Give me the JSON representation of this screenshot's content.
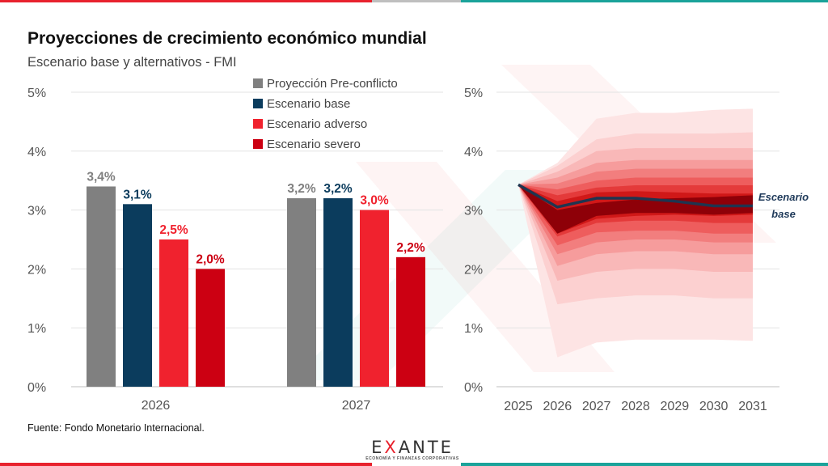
{
  "title": "Proyecciones de crecimiento económico mundial",
  "subtitle": "Escenario base y alternativos - FMI",
  "source": "Fuente: Fondo Monetario Internacional.",
  "logo": {
    "wordmark_pre": "E",
    "wordmark_x": "X",
    "wordmark_post": "ANTE",
    "tagline": "ECONOMÍA Y FINANZAS CORPORATIVAS"
  },
  "colors": {
    "pre_conflict": "#808080",
    "base": "#0b3c5d",
    "adverse": "#f0222e",
    "severe": "#cc0012",
    "brand_red": "#e8222d",
    "brand_teal": "#1aa39a"
  },
  "chart_data": [
    {
      "type": "bar",
      "categories": [
        "2026",
        "2027"
      ],
      "series": [
        {
          "name": "Proyección Pre-conflicto",
          "values": [
            3.4,
            3.2
          ],
          "labels": [
            "3,4%",
            "3,2%"
          ],
          "color": "#808080"
        },
        {
          "name": "Escenario base",
          "values": [
            3.1,
            3.2
          ],
          "labels": [
            "3,1%",
            "3,2%"
          ],
          "color": "#0b3c5d"
        },
        {
          "name": "Escenario adverso",
          "values": [
            2.5,
            3.0
          ],
          "labels": [
            "2,5%",
            "3,0%"
          ],
          "color": "#f0222e"
        },
        {
          "name": "Escenario severo",
          "values": [
            2.0,
            2.2
          ],
          "labels": [
            "2,0%",
            "2,2%"
          ],
          "color": "#cc0012"
        }
      ],
      "ylim": [
        0,
        5
      ],
      "yticks": [
        "0%",
        "1%",
        "2%",
        "3%",
        "4%",
        "5%"
      ],
      "grid": true,
      "legend": "top-right"
    },
    {
      "type": "area",
      "x": [
        "2025",
        "2026",
        "2027",
        "2028",
        "2029",
        "2030",
        "2031"
      ],
      "base_line": {
        "name": "Escenario base",
        "values": [
          3.43,
          3.05,
          3.2,
          3.2,
          3.15,
          3.07,
          3.07
        ]
      },
      "bands": [
        {
          "lower": [
            3.43,
            0.5,
            0.75,
            0.8,
            0.8,
            0.8,
            0.78
          ],
          "upper": [
            3.43,
            3.8,
            4.55,
            4.65,
            4.65,
            4.7,
            4.72
          ]
        },
        {
          "lower": [
            3.43,
            1.4,
            1.5,
            1.55,
            1.55,
            1.5,
            1.5
          ],
          "upper": [
            3.43,
            3.75,
            4.2,
            4.3,
            4.3,
            4.3,
            4.32
          ]
        },
        {
          "lower": [
            3.43,
            1.8,
            1.95,
            2.0,
            2.0,
            1.95,
            1.95
          ],
          "upper": [
            3.43,
            3.65,
            4.0,
            4.05,
            4.05,
            4.05,
            4.05
          ]
        },
        {
          "lower": [
            3.43,
            2.05,
            2.25,
            2.3,
            2.3,
            2.25,
            2.25
          ],
          "upper": [
            3.43,
            3.55,
            3.8,
            3.85,
            3.85,
            3.85,
            3.85
          ]
        },
        {
          "lower": [
            3.43,
            2.25,
            2.45,
            2.5,
            2.5,
            2.45,
            2.45
          ],
          "upper": [
            3.43,
            3.45,
            3.65,
            3.7,
            3.7,
            3.7,
            3.7
          ]
        },
        {
          "lower": [
            3.43,
            2.4,
            2.62,
            2.65,
            2.65,
            2.6,
            2.6
          ],
          "upper": [
            3.43,
            3.35,
            3.5,
            3.55,
            3.55,
            3.55,
            3.55
          ]
        },
        {
          "lower": [
            3.43,
            2.55,
            2.78,
            2.82,
            2.82,
            2.78,
            2.78
          ],
          "upper": [
            3.43,
            3.25,
            3.38,
            3.42,
            3.42,
            3.42,
            3.42
          ]
        },
        {
          "lower": [
            3.43,
            2.6,
            2.85,
            2.9,
            2.92,
            2.9,
            2.92
          ],
          "upper": [
            3.43,
            3.15,
            3.3,
            3.32,
            3.3,
            3.28,
            3.28
          ]
        },
        {
          "lower": [
            3.43,
            2.6,
            2.9,
            2.95,
            2.95,
            2.92,
            2.95
          ],
          "upper": [
            3.43,
            3.0,
            3.12,
            3.18,
            3.2,
            3.22,
            3.25
          ]
        }
      ],
      "band_colors": [
        "#fde4e4",
        "#fcd0d0",
        "#f9b8b8",
        "#f69c9c",
        "#f27e7e",
        "#ee5d5d",
        "#e43a3a",
        "#d01818",
        "#8e0008"
      ],
      "annotation": [
        "Escenario",
        "base"
      ],
      "ylim": [
        0,
        5
      ],
      "yticks": [
        "0%",
        "1%",
        "2%",
        "3%",
        "4%",
        "5%"
      ],
      "grid": true
    }
  ]
}
